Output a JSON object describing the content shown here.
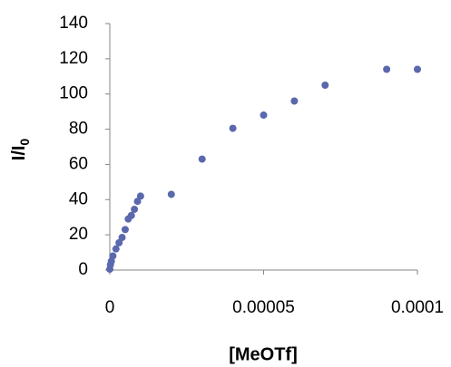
{
  "chart_data": {
    "type": "scatter",
    "x_label": "[MeOTf]",
    "y_label": {
      "text": "I/I",
      "subscript": "0"
    },
    "color": "#5a68ad",
    "x": [
      0,
      2e-07,
      5e-07,
      1e-06,
      2e-06,
      3e-06,
      4e-06,
      5e-06,
      6e-06,
      7e-06,
      8e-06,
      9e-06,
      1e-05,
      2e-05,
      3e-05,
      4e-05,
      5e-05,
      6e-05,
      7e-05,
      9e-05,
      0.0001
    ],
    "values": [
      0.5,
      3,
      5,
      8,
      12,
      15.5,
      18.5,
      23,
      29,
      31,
      34.5,
      39,
      42,
      43,
      63,
      80.5,
      88,
      96,
      105,
      114,
      114
    ],
    "xlim": [
      0,
      0.0001
    ],
    "xticks": [
      0,
      5e-05,
      0.0001
    ],
    "ylim": [
      0,
      140
    ],
    "yticks": [
      0,
      20,
      40,
      60,
      80,
      100,
      120,
      140
    ],
    "grid": false
  }
}
